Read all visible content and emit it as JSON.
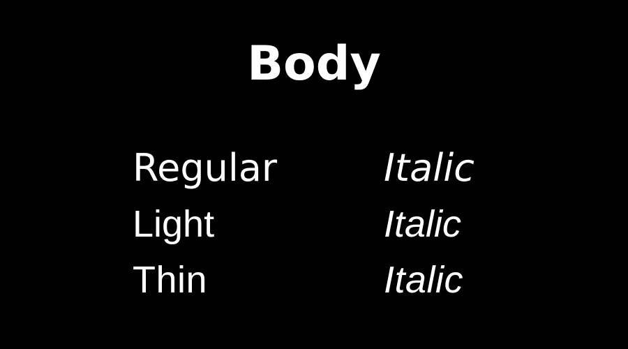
{
  "title": "Body",
  "styles": [
    {
      "name": "Regular",
      "variant": "Italic"
    },
    {
      "name": "Light",
      "variant": "Italic"
    },
    {
      "name": "Thin",
      "variant": "Italic"
    }
  ],
  "colors": {
    "background": "#000000",
    "text": "#ffffff"
  }
}
